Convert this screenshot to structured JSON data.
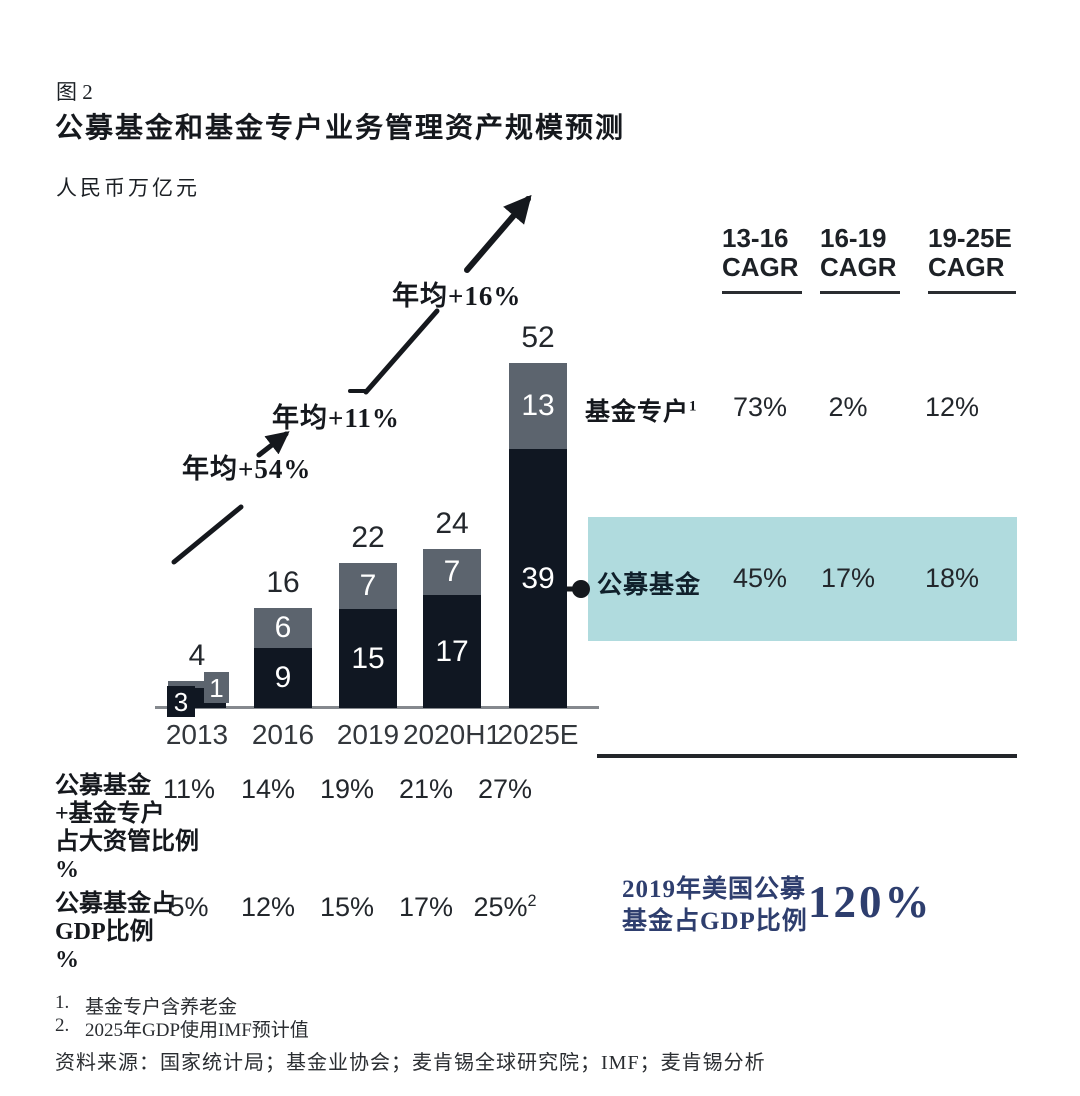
{
  "figure": {
    "label": "图 2",
    "title": "公募基金和基金专户业务管理资产规模预测",
    "unit": "人民币万亿元"
  },
  "chart_data": {
    "type": "bar",
    "stacked": true,
    "title": "公募基金和基金专户业务管理资产规模预测",
    "unit_label": "人民币万亿元",
    "categories": [
      "2013",
      "2016",
      "2019",
      "2020H1",
      "2025E"
    ],
    "series": [
      {
        "name": "公募基金",
        "color": "#101722",
        "values": [
          3,
          9,
          15,
          17,
          39
        ]
      },
      {
        "name": "基金专户",
        "color": "#5c646e",
        "values": [
          1,
          6,
          7,
          7,
          13
        ]
      }
    ],
    "totals": [
      4,
      16,
      22,
      24,
      52
    ],
    "growth_annotations": [
      "年均+54%",
      "年均+11%",
      "年均+16%"
    ],
    "ylim": [
      0,
      52
    ],
    "grid": false,
    "legend_position": "none"
  },
  "cagr_table": {
    "columns": [
      {
        "period": "13-16",
        "label": "CAGR"
      },
      {
        "period": "16-19",
        "label": "CAGR"
      },
      {
        "period": "19-25E",
        "label": "CAGR"
      }
    ],
    "rows": [
      {
        "label": "基金专户",
        "sup": "1",
        "values": [
          "73%",
          "2%",
          "12%"
        ]
      },
      {
        "label": "公募基金",
        "sup": "",
        "values": [
          "45%",
          "17%",
          "18%"
        ]
      }
    ],
    "highlight_color": "#b0dbde"
  },
  "stats": {
    "rows": [
      {
        "label_lines": [
          "公募基金",
          "+基金专户",
          "占大资管比例",
          "%"
        ],
        "values": [
          "11%",
          "14%",
          "19%",
          "21%",
          "27%"
        ],
        "sup": ""
      },
      {
        "label_lines": [
          "公募基金占",
          "GDP比例",
          "%"
        ],
        "values": [
          "5%",
          "12%",
          "15%",
          "17%",
          "25%"
        ],
        "sup": "2"
      }
    ]
  },
  "callout": {
    "text_line1": "2019年美国公募",
    "text_line2": "基金占GDP比例",
    "value": "120%",
    "color": "#2e3e6e"
  },
  "footnotes": [
    {
      "num": "1.",
      "text": "基金专户含养老金"
    },
    {
      "num": "2.",
      "text": "2025年GDP使用IMF预计值"
    }
  ],
  "source": "资料来源：国家统计局；基金业协会；麦肯锡全球研究院；IMF；麦肯锡分析"
}
